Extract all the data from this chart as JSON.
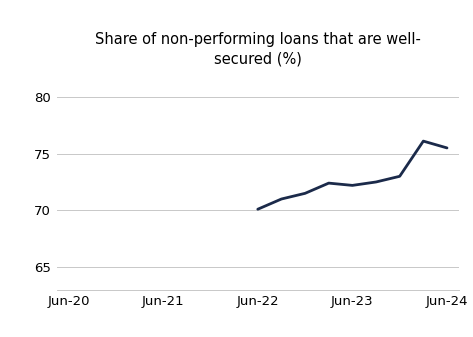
{
  "title": "Share of non-performing loans that are well-\nsecured (%)",
  "x_labels": [
    "Jun-20",
    "Jun-21",
    "Jun-22",
    "Jun-23",
    "Jun-24"
  ],
  "xtick_positions": [
    0,
    4,
    8,
    12,
    16
  ],
  "x_data": [
    8,
    9,
    10,
    11,
    12,
    13,
    14,
    15,
    16
  ],
  "y_data": [
    70.1,
    71.0,
    71.5,
    72.4,
    72.2,
    72.5,
    73.0,
    76.1,
    75.5
  ],
  "line_color": "#1b2a4a",
  "line_width": 2.0,
  "ylim": [
    63,
    82
  ],
  "xlim": [
    -0.5,
    16.5
  ],
  "yticks": [
    65,
    70,
    75,
    80
  ],
  "background_color": "#ffffff",
  "grid_color": "#c8c8c8",
  "title_fontsize": 10.5,
  "tick_fontsize": 9.5
}
